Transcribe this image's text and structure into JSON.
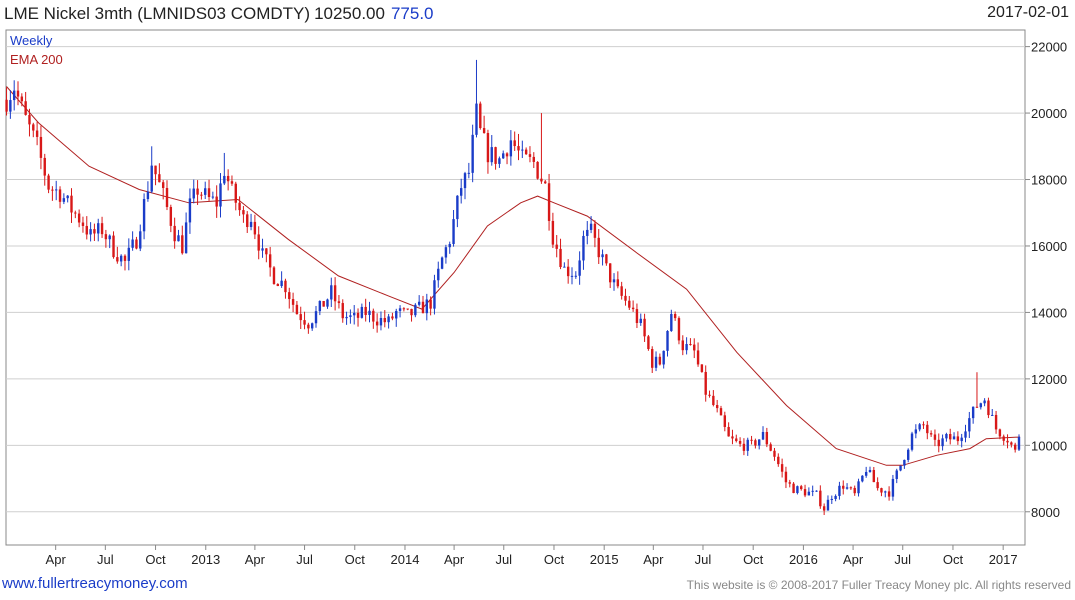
{
  "header": {
    "title": "LME Nickel 3mth (LMNIDS03 COMDTY)",
    "value": "10250.00",
    "change": "775.0",
    "date": "2017-02-01"
  },
  "legend": {
    "weekly": "Weekly",
    "ema": "EMA 200"
  },
  "footer": {
    "left": "www.fullertreacymoney.com",
    "right": "This website is © 2008-2017 Fuller Treacy Money plc. All rights reserved"
  },
  "colors": {
    "up": "#1a3cc8",
    "down": "#d81818",
    "ema": "#b02020",
    "grid": "#cfcfcf"
  },
  "chart_data": {
    "type": "candlestick",
    "interval": "weekly",
    "xlim": [
      "2012-01-01",
      "2017-02-10"
    ],
    "ylim": [
      7000,
      22500
    ],
    "y_ticks": [
      8000,
      10000,
      12000,
      14000,
      16000,
      18000,
      20000,
      22000
    ],
    "x_ticks": [
      {
        "date": "2012-04-01",
        "label": "Apr"
      },
      {
        "date": "2012-07-01",
        "label": "Jul"
      },
      {
        "date": "2012-10-01",
        "label": "Oct"
      },
      {
        "date": "2013-01-01",
        "label": "2013"
      },
      {
        "date": "2013-04-01",
        "label": "Apr"
      },
      {
        "date": "2013-07-01",
        "label": "Jul"
      },
      {
        "date": "2013-10-01",
        "label": "Oct"
      },
      {
        "date": "2014-01-01",
        "label": "2014"
      },
      {
        "date": "2014-04-01",
        "label": "Apr"
      },
      {
        "date": "2014-07-01",
        "label": "Jul"
      },
      {
        "date": "2014-10-01",
        "label": "Oct"
      },
      {
        "date": "2015-01-01",
        "label": "2015"
      },
      {
        "date": "2015-04-01",
        "label": "Apr"
      },
      {
        "date": "2015-07-01",
        "label": "Jul"
      },
      {
        "date": "2015-10-01",
        "label": "Oct"
      },
      {
        "date": "2016-01-01",
        "label": "2016"
      },
      {
        "date": "2016-04-01",
        "label": "Apr"
      },
      {
        "date": "2016-07-01",
        "label": "Jul"
      },
      {
        "date": "2016-10-01",
        "label": "Oct"
      },
      {
        "date": "2017-01-01",
        "label": "2017"
      }
    ],
    "close_anchors": [
      [
        "2012-01-02",
        20400
      ],
      [
        "2012-01-16",
        20800
      ],
      [
        "2012-02-06",
        19800
      ],
      [
        "2012-02-27",
        19000
      ],
      [
        "2012-03-19",
        17800
      ],
      [
        "2012-04-09",
        17600
      ],
      [
        "2012-04-30",
        17100
      ],
      [
        "2012-05-21",
        16700
      ],
      [
        "2012-06-04",
        16300
      ],
      [
        "2012-06-25",
        16500
      ],
      [
        "2012-07-16",
        15900
      ],
      [
        "2012-08-06",
        15500
      ],
      [
        "2012-08-27",
        16200
      ],
      [
        "2012-09-17",
        17800
      ],
      [
        "2012-09-24",
        18500
      ],
      [
        "2012-10-15",
        17500
      ],
      [
        "2012-11-05",
        16400
      ],
      [
        "2012-11-19",
        16000
      ],
      [
        "2012-12-03",
        17200
      ],
      [
        "2012-12-17",
        17700
      ],
      [
        "2013-01-07",
        17400
      ],
      [
        "2013-01-21",
        17300
      ],
      [
        "2013-02-04",
        18300
      ],
      [
        "2013-02-18",
        17600
      ],
      [
        "2013-03-11",
        16800
      ],
      [
        "2013-03-25",
        16900
      ],
      [
        "2013-04-15",
        15700
      ],
      [
        "2013-05-06",
        15100
      ],
      [
        "2013-05-27",
        14800
      ],
      [
        "2013-06-17",
        14000
      ],
      [
        "2013-07-08",
        13700
      ],
      [
        "2013-07-29",
        14100
      ],
      [
        "2013-08-19",
        14600
      ],
      [
        "2013-09-09",
        13900
      ],
      [
        "2013-09-30",
        13800
      ],
      [
        "2013-10-21",
        14000
      ],
      [
        "2013-11-11",
        13800
      ],
      [
        "2013-12-02",
        13700
      ],
      [
        "2013-12-16",
        14000
      ],
      [
        "2014-01-06",
        13900
      ],
      [
        "2014-01-27",
        14100
      ],
      [
        "2014-02-17",
        14300
      ],
      [
        "2014-03-10",
        15600
      ],
      [
        "2014-03-24",
        16200
      ],
      [
        "2014-04-14",
        17800
      ],
      [
        "2014-04-28",
        18200
      ],
      [
        "2014-05-12",
        20000
      ],
      [
        "2014-05-19",
        19400
      ],
      [
        "2014-06-02",
        18800
      ],
      [
        "2014-06-23",
        18600
      ],
      [
        "2014-07-14",
        19200
      ],
      [
        "2014-08-04",
        18600
      ],
      [
        "2014-08-25",
        18500
      ],
      [
        "2014-09-15",
        17800
      ],
      [
        "2014-09-29",
        16300
      ],
      [
        "2014-10-20",
        15300
      ],
      [
        "2014-11-10",
        15200
      ],
      [
        "2014-11-24",
        16200
      ],
      [
        "2014-12-08",
        16400
      ],
      [
        "2015-01-05",
        15300
      ],
      [
        "2015-01-26",
        14600
      ],
      [
        "2015-02-16",
        14200
      ],
      [
        "2015-03-09",
        13600
      ],
      [
        "2015-03-30",
        12500
      ],
      [
        "2015-04-13",
        12500
      ],
      [
        "2015-05-04",
        14000
      ],
      [
        "2015-05-25",
        13000
      ],
      [
        "2015-06-15",
        12800
      ],
      [
        "2015-07-06",
        11600
      ],
      [
        "2015-07-27",
        11000
      ],
      [
        "2015-08-17",
        10200
      ],
      [
        "2015-09-07",
        10000
      ],
      [
        "2015-09-28",
        10000
      ],
      [
        "2015-10-19",
        10300
      ],
      [
        "2015-11-09",
        9700
      ],
      [
        "2015-11-30",
        8900
      ],
      [
        "2015-12-14",
        8700
      ],
      [
        "2016-01-04",
        8600
      ],
      [
        "2016-01-25",
        8500
      ],
      [
        "2016-02-08",
        8100
      ],
      [
        "2016-02-22",
        8500
      ],
      [
        "2016-03-14",
        8800
      ],
      [
        "2016-04-04",
        8500
      ],
      [
        "2016-04-25",
        9300
      ],
      [
        "2016-05-16",
        8700
      ],
      [
        "2016-06-06",
        8600
      ],
      [
        "2016-06-27",
        9400
      ],
      [
        "2016-07-18",
        10300
      ],
      [
        "2016-08-08",
        10600
      ],
      [
        "2016-08-29",
        10000
      ],
      [
        "2016-09-19",
        10200
      ],
      [
        "2016-10-10",
        10200
      ],
      [
        "2016-10-31",
        10800
      ],
      [
        "2016-11-14",
        11200
      ],
      [
        "2016-11-28",
        11400
      ],
      [
        "2016-12-19",
        10500
      ],
      [
        "2017-01-09",
        10200
      ],
      [
        "2017-01-23",
        9800
      ],
      [
        "2017-02-01",
        10250
      ]
    ],
    "ema_anchors": [
      [
        "2012-01-02",
        20800
      ],
      [
        "2012-03-01",
        19700
      ],
      [
        "2012-06-01",
        18400
      ],
      [
        "2012-09-01",
        17700
      ],
      [
        "2012-12-01",
        17300
      ],
      [
        "2013-03-01",
        17400
      ],
      [
        "2013-06-01",
        16200
      ],
      [
        "2013-09-01",
        15100
      ],
      [
        "2013-12-01",
        14500
      ],
      [
        "2014-02-01",
        14100
      ],
      [
        "2014-04-01",
        15200
      ],
      [
        "2014-06-01",
        16600
      ],
      [
        "2014-08-01",
        17300
      ],
      [
        "2014-09-01",
        17500
      ],
      [
        "2014-10-01",
        17300
      ],
      [
        "2014-12-01",
        16900
      ],
      [
        "2015-03-01",
        15800
      ],
      [
        "2015-06-01",
        14700
      ],
      [
        "2015-09-01",
        12800
      ],
      [
        "2015-12-01",
        11200
      ],
      [
        "2016-03-01",
        9900
      ],
      [
        "2016-06-01",
        9400
      ],
      [
        "2016-07-01",
        9400
      ],
      [
        "2016-09-01",
        9700
      ],
      [
        "2016-11-01",
        9900
      ],
      [
        "2016-12-01",
        10200
      ],
      [
        "2017-02-01",
        10250
      ]
    ],
    "wick_anchors": [
      [
        "2012-09-24",
        19000
      ],
      [
        "2013-02-04",
        18800
      ],
      [
        "2014-05-12",
        21600
      ],
      [
        "2014-09-08",
        20000
      ],
      [
        "2016-11-14",
        12200
      ]
    ]
  }
}
